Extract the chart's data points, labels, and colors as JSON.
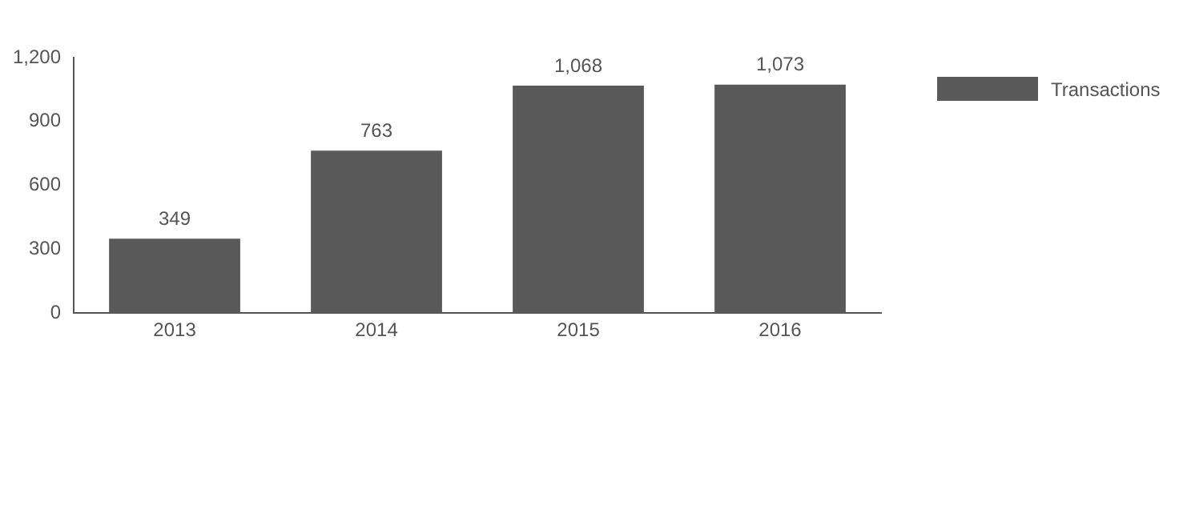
{
  "chart_data": {
    "type": "bar",
    "categories": [
      "2013",
      "2014",
      "2015",
      "2016"
    ],
    "series": [
      {
        "name": "Transactions",
        "color": "#595959",
        "values": [
          349,
          763,
          1068,
          1073
        ],
        "value_labels": [
          "349",
          "763",
          "1,068",
          "1,073"
        ]
      }
    ],
    "ylim": [
      0,
      1200
    ],
    "yticks": [
      0,
      {
        "value": 300,
        "label": "300"
      },
      {
        "value": 600,
        "label": "600"
      },
      {
        "value": 900,
        "label": "900"
      },
      {
        "value": 1200,
        "label": "1,200"
      }
    ],
    "grid": false,
    "legend": "top right"
  }
}
